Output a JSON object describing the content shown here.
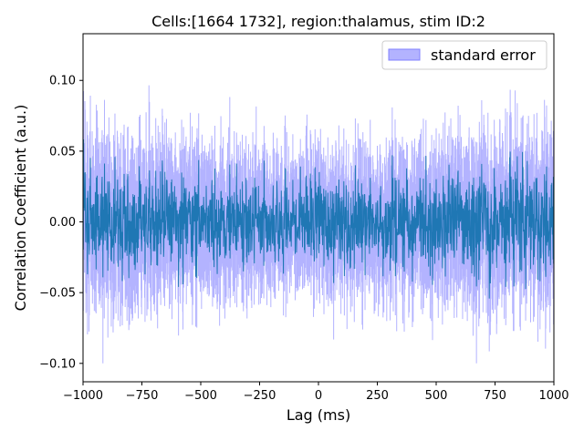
{
  "chart_data": {
    "type": "line",
    "title": "Cells:[1664 1732], region:thalamus, stim ID:2",
    "xlabel": "Lag (ms)",
    "ylabel": "Correlation Coefficient (a.u.)",
    "xlim": [
      -1000,
      1000
    ],
    "ylim": [
      -0.113,
      0.133
    ],
    "x_ticks": [
      -1000,
      -750,
      -500,
      -250,
      0,
      250,
      500,
      750,
      1000
    ],
    "x_tick_labels": [
      "−1000",
      "−750",
      "−500",
      "−250",
      "0",
      "250",
      "500",
      "750",
      "1000"
    ],
    "y_ticks": [
      -0.1,
      -0.05,
      0.0,
      0.05,
      0.1
    ],
    "y_tick_labels": [
      "−0.10",
      "−0.05",
      "0.00",
      "0.05",
      "0.10"
    ],
    "grid": false,
    "legend": {
      "placement": "top-right",
      "entries": [
        {
          "label": "standard error",
          "color": "#b3b3ff"
        }
      ]
    },
    "series": [
      {
        "role": "mean",
        "color": "#1f77b4",
        "x": [
          -1000,
          -750,
          -500,
          -250,
          0,
          250,
          500,
          750,
          1000
        ],
        "values": [
          0.0,
          0.0,
          0.0,
          0.0,
          0.0,
          0.0,
          0.0,
          0.0,
          0.0
        ],
        "envelope": [
          0.045,
          0.043,
          0.04,
          0.036,
          0.035,
          0.038,
          0.041,
          0.044,
          0.046
        ]
      },
      {
        "name": "standard error",
        "role": "band",
        "color": "#b3b3ff",
        "x": [
          -1000,
          -750,
          -500,
          -250,
          0,
          250,
          500,
          750,
          1000
        ],
        "envelope": [
          0.062,
          0.06,
          0.055,
          0.05,
          0.049,
          0.053,
          0.057,
          0.061,
          0.064
        ],
        "peak_max": 0.12,
        "peak_min": -0.1
      }
    ]
  }
}
